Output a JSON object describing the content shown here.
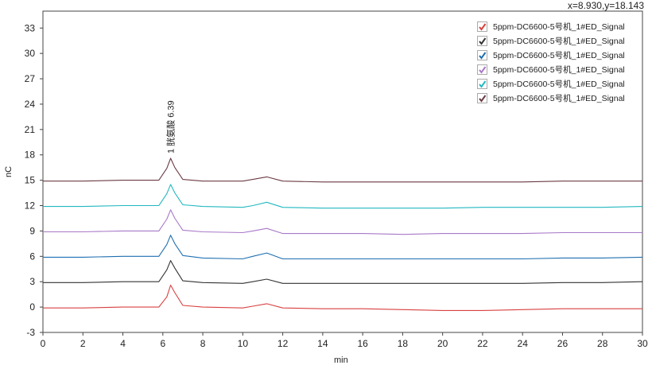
{
  "coord_readout": "x=8.930,y=18.143",
  "legend": [
    {
      "label": "5ppm-DC6600-5号机_1#ED_Signal",
      "color": "#d94040"
    },
    {
      "label": "5ppm-DC6600-5号机_1#ED_Signal",
      "color": "#333333"
    },
    {
      "label": "5ppm-DC6600-5号机_1#ED_Signal",
      "color": "#1f6fb0"
    },
    {
      "label": "5ppm-DC6600-5号机_1#ED_Signal",
      "color": "#a878c8"
    },
    {
      "label": "5ppm-DC6600-5号机_1#ED_Signal",
      "color": "#22b8c0"
    },
    {
      "label": "5ppm-DC6600-5号机_1#ED_Signal",
      "color": "#6b3a44"
    }
  ],
  "chart_data": {
    "type": "line",
    "xlabel": "min",
    "ylabel": "nC",
    "xlim": [
      0,
      30
    ],
    "ylim": [
      -3,
      35
    ],
    "xticks": [
      0,
      2,
      4,
      6,
      8,
      10,
      12,
      14,
      16,
      18,
      20,
      22,
      24,
      26,
      28,
      30
    ],
    "yticks": [
      -3,
      0,
      3,
      6,
      9,
      12,
      15,
      18,
      21,
      24,
      27,
      30,
      33
    ],
    "peak_annotation": {
      "text": "1 胱氨酸 6.39",
      "x": 6.39,
      "y": 17.6
    },
    "series": [
      {
        "name": "5ppm-DC6600-5号机_1#ED_Signal",
        "color": "#d94040",
        "x": [
          0,
          2,
          4,
          5.8,
          6.2,
          6.39,
          6.6,
          7.0,
          8,
          10,
          10.5,
          11.2,
          12,
          14,
          16,
          18,
          20,
          22,
          24,
          26,
          28,
          30
        ],
        "y": [
          -0.1,
          -0.1,
          0.0,
          0.0,
          1.2,
          2.6,
          1.7,
          0.2,
          0.0,
          -0.1,
          0.1,
          0.4,
          -0.1,
          -0.2,
          -0.2,
          -0.3,
          -0.4,
          -0.4,
          -0.3,
          -0.2,
          -0.2,
          -0.2
        ]
      },
      {
        "name": "5ppm-DC6600-5号机_1#ED_Signal",
        "color": "#333333",
        "x": [
          0,
          2,
          4,
          5.8,
          6.2,
          6.39,
          6.6,
          7.0,
          8,
          10,
          10.5,
          11.2,
          12,
          14,
          16,
          18,
          20,
          22,
          24,
          26,
          28,
          30
        ],
        "y": [
          2.9,
          2.9,
          3.0,
          3.0,
          4.4,
          5.5,
          4.6,
          3.1,
          2.9,
          2.8,
          3.0,
          3.3,
          2.8,
          2.8,
          2.8,
          2.8,
          2.8,
          2.8,
          2.8,
          2.9,
          2.9,
          3.0
        ]
      },
      {
        "name": "5ppm-DC6600-5号机_1#ED_Signal",
        "color": "#1f6fb0",
        "x": [
          0,
          2,
          4,
          5.8,
          6.2,
          6.39,
          6.6,
          7.0,
          8,
          10,
          10.5,
          11.2,
          12,
          14,
          16,
          18,
          20,
          22,
          24,
          26,
          28,
          30
        ],
        "y": [
          5.9,
          5.9,
          6.0,
          6.0,
          7.4,
          8.5,
          7.5,
          6.1,
          5.8,
          5.7,
          6.0,
          6.4,
          5.7,
          5.7,
          5.7,
          5.7,
          5.7,
          5.7,
          5.7,
          5.8,
          5.8,
          5.9
        ]
      },
      {
        "name": "5ppm-DC6600-5号机_1#ED_Signal",
        "color": "#a878c8",
        "x": [
          0,
          2,
          4,
          5.8,
          6.2,
          6.39,
          6.6,
          7.0,
          8,
          10,
          10.5,
          11.2,
          12,
          14,
          16,
          18,
          20,
          22,
          24,
          26,
          28,
          30
        ],
        "y": [
          8.9,
          8.9,
          9.0,
          9.0,
          10.4,
          11.5,
          10.5,
          9.1,
          8.9,
          8.8,
          9.0,
          9.3,
          8.7,
          8.7,
          8.7,
          8.6,
          8.7,
          8.7,
          8.7,
          8.8,
          8.8,
          8.8
        ]
      },
      {
        "name": "5ppm-DC6600-5号机_1#ED_Signal",
        "color": "#22b8c0",
        "x": [
          0,
          2,
          4,
          5.8,
          6.2,
          6.39,
          6.6,
          7.0,
          8,
          10,
          10.5,
          11.2,
          12,
          14,
          16,
          18,
          20,
          22,
          24,
          26,
          28,
          30
        ],
        "y": [
          11.9,
          11.9,
          12.0,
          12.0,
          13.4,
          14.5,
          13.5,
          12.1,
          11.9,
          11.8,
          12.0,
          12.4,
          11.8,
          11.7,
          11.7,
          11.7,
          11.7,
          11.8,
          11.8,
          11.8,
          11.8,
          11.9
        ]
      },
      {
        "name": "5ppm-DC6600-5号机_1#ED_Signal",
        "color": "#6b3a44",
        "x": [
          0,
          2,
          4,
          5.8,
          6.2,
          6.39,
          6.6,
          7.0,
          8,
          10,
          10.5,
          11.2,
          12,
          14,
          16,
          18,
          20,
          22,
          24,
          26,
          28,
          30
        ],
        "y": [
          14.9,
          14.9,
          15.0,
          15.0,
          16.4,
          17.6,
          16.5,
          15.1,
          14.9,
          14.9,
          15.1,
          15.4,
          14.9,
          14.8,
          14.8,
          14.8,
          14.8,
          14.8,
          14.8,
          14.9,
          14.9,
          14.9
        ]
      }
    ]
  }
}
